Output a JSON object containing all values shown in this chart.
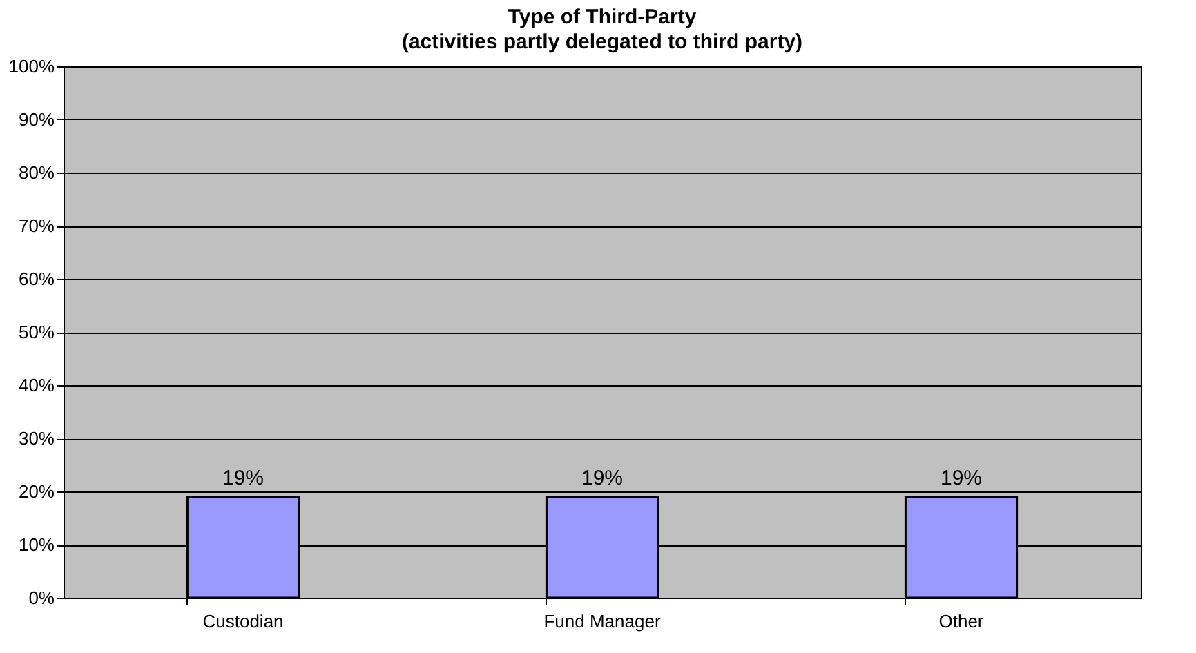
{
  "chart_data": {
    "type": "bar",
    "title": "Type of Third-Party",
    "subtitle": "(activities partly delegated to third party)",
    "categories": [
      "Custodian",
      "Fund Manager",
      "Other"
    ],
    "values": [
      19,
      19,
      19
    ],
    "value_labels": [
      "19%",
      "19%",
      "19%"
    ],
    "color": "#9999ff",
    "ylim": [
      0,
      100
    ],
    "yticks": [
      {
        "value": 0,
        "label": "0%"
      },
      {
        "value": 10,
        "label": "10%"
      },
      {
        "value": 20,
        "label": "20%"
      },
      {
        "value": 30,
        "label": "30%"
      },
      {
        "value": 40,
        "label": "40%"
      },
      {
        "value": 50,
        "label": "50%"
      },
      {
        "value": 60,
        "label": "60%"
      },
      {
        "value": 70,
        "label": "70%"
      },
      {
        "value": 80,
        "label": "80%"
      },
      {
        "value": 90,
        "label": "90%"
      },
      {
        "value": 100,
        "label": "100%"
      }
    ],
    "grid": "y"
  }
}
